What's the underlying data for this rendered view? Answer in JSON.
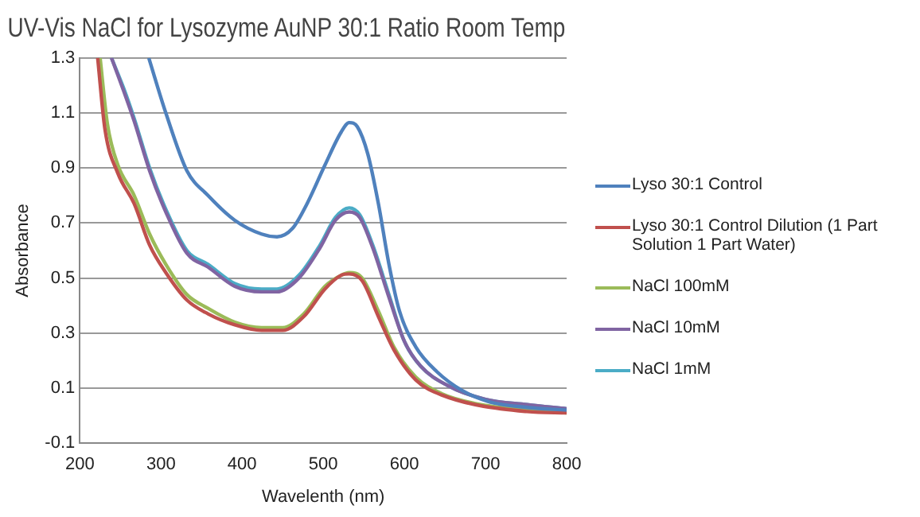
{
  "chart_data": {
    "type": "line",
    "title": "UV-Vis NaCl for Lysozyme AuNP 30:1 Ratio Room Temp",
    "xlabel": "Wavelenth (nm)",
    "ylabel": "Absorbance",
    "xlim": [
      200,
      800
    ],
    "xticks": [
      200,
      300,
      400,
      500,
      600,
      700,
      800
    ],
    "ylim": [
      -0.1,
      1.3
    ],
    "yticks": [
      -0.1,
      0.1,
      0.3,
      0.5,
      0.7,
      0.9,
      1.1,
      1.3
    ],
    "grid": "y",
    "legend": "right",
    "marker": "none",
    "series": [
      {
        "name": "Lyso 30:1 Control",
        "color": "#4f81bd",
        "x": [
          285,
          306,
          332,
          358,
          391,
          424,
          443,
          462,
          480,
          502,
          522,
          532,
          542,
          555,
          568,
          581,
          594,
          614,
          640,
          672,
          705,
          751,
          800
        ],
        "values": [
          1.3,
          1.1,
          0.89,
          0.8,
          0.71,
          0.66,
          0.65,
          0.68,
          0.77,
          0.91,
          1.03,
          1.065,
          1.05,
          0.95,
          0.77,
          0.55,
          0.38,
          0.25,
          0.16,
          0.09,
          0.05,
          0.03,
          0.02
        ]
      },
      {
        "name": "Lyso 30:1 Control Dilution (1 Part Solution 1 Part Water)",
        "color": "#c0504d",
        "x": [
          222,
          231,
          247,
          267,
          286,
          306,
          332,
          358,
          391,
          424,
          450,
          476,
          502,
          522,
          532,
          548,
          568,
          587,
          614,
          646,
          751,
          800
        ],
        "values": [
          1.3,
          1.04,
          0.88,
          0.77,
          0.62,
          0.52,
          0.42,
          0.37,
          0.33,
          0.31,
          0.31,
          0.36,
          0.46,
          0.51,
          0.515,
          0.49,
          0.36,
          0.24,
          0.13,
          0.075,
          0.015,
          0.01
        ]
      },
      {
        "name": "NaCl 100mM",
        "color": "#9bbb59",
        "x": [
          225,
          234,
          247,
          267,
          286,
          306,
          332,
          358,
          391,
          424,
          450,
          476,
          502,
          522,
          532,
          548,
          568,
          587,
          614,
          646,
          686,
          751,
          800
        ],
        "values": [
          1.3,
          1.06,
          0.91,
          0.8,
          0.66,
          0.55,
          0.44,
          0.39,
          0.34,
          0.32,
          0.32,
          0.37,
          0.47,
          0.51,
          0.52,
          0.5,
          0.38,
          0.25,
          0.14,
          0.08,
          0.045,
          0.02,
          0.01
        ]
      },
      {
        "name": "NaCl 10mM",
        "color": "#8064a2",
        "x": [
          239,
          254,
          267,
          286,
          306,
          332,
          358,
          391,
          424,
          443,
          470,
          496,
          515,
          532,
          545,
          561,
          581,
          600,
          620,
          653,
          699,
          751,
          800
        ],
        "values": [
          1.3,
          1.18,
          1.07,
          0.89,
          0.74,
          0.59,
          0.54,
          0.47,
          0.45,
          0.45,
          0.5,
          0.61,
          0.71,
          0.74,
          0.72,
          0.61,
          0.43,
          0.27,
          0.18,
          0.11,
          0.06,
          0.04,
          0.025
        ]
      },
      {
        "name": "NaCl 1mM",
        "color": "#4bacc6",
        "x": [
          239,
          254,
          267,
          286,
          306,
          332,
          358,
          391,
          424,
          443,
          470,
          496,
          515,
          532,
          545,
          561,
          581,
          600,
          620,
          653,
          699,
          751,
          800
        ],
        "values": [
          1.3,
          1.19,
          1.08,
          0.9,
          0.75,
          0.6,
          0.55,
          0.48,
          0.46,
          0.46,
          0.51,
          0.62,
          0.72,
          0.755,
          0.73,
          0.62,
          0.44,
          0.27,
          0.18,
          0.11,
          0.06,
          0.04,
          0.025
        ]
      }
    ]
  }
}
